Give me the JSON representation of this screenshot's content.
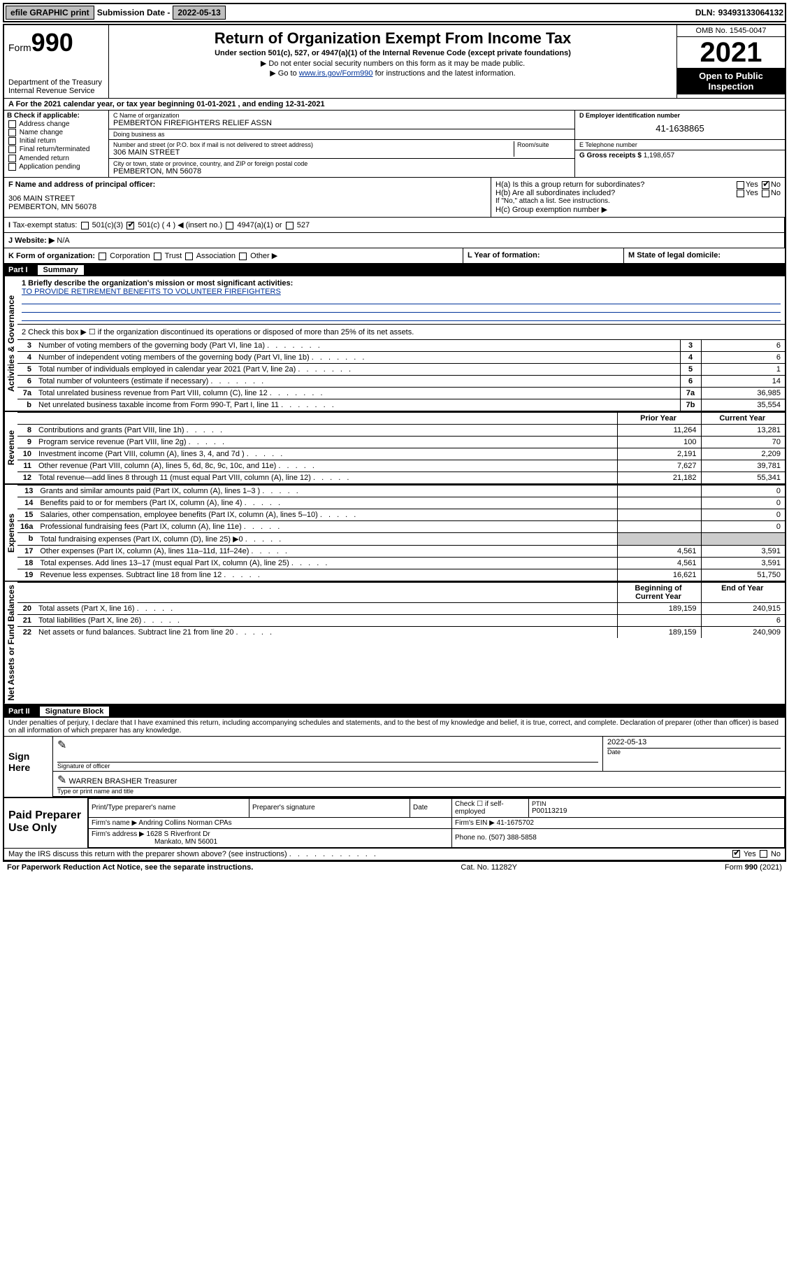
{
  "top": {
    "efile": "efile GRAPHIC print",
    "submission_label": "Submission Date - ",
    "submission_date": "2022-05-13",
    "dln_label": "DLN: ",
    "dln": "93493133064132"
  },
  "header": {
    "form_word": "Form",
    "form_num": "990",
    "dept": "Department of the Treasury",
    "irs": "Internal Revenue Service",
    "title": "Return of Organization Exempt From Income Tax",
    "sub": "Under section 501(c), 527, or 4947(a)(1) of the Internal Revenue Code (except private foundations)",
    "note1": "▶ Do not enter social security numbers on this form as it may be made public.",
    "note2_pre": "▶ Go to ",
    "note2_link": "www.irs.gov/Form990",
    "note2_post": " for instructions and the latest information.",
    "omb": "OMB No. 1545-0047",
    "year": "2021",
    "open": "Open to Public Inspection"
  },
  "period": {
    "label": "A For the 2021 calendar year, or tax year beginning ",
    "begin": "01-01-2021",
    "mid": " , and ending ",
    "end": "12-31-2021"
  },
  "boxB": {
    "title": "B Check if applicable:",
    "opts": [
      "Address change",
      "Name change",
      "Initial return",
      "Final return/terminated",
      "Amended return",
      "Application pending"
    ]
  },
  "boxC": {
    "name_lbl": "C Name of organization",
    "name": "PEMBERTON FIREFIGHTERS RELIEF ASSN",
    "dba_lbl": "Doing business as",
    "dba": "",
    "addr_lbl": "Number and street (or P.O. box if mail is not delivered to street address)",
    "room_lbl": "Room/suite",
    "addr": "306 MAIN STREET",
    "city_lbl": "City or town, state or province, country, and ZIP or foreign postal code",
    "city": "PEMBERTON, MN  56078"
  },
  "boxD": {
    "lbl": "D Employer identification number",
    "val": "41-1638865"
  },
  "boxE": {
    "lbl": "E Telephone number",
    "val": ""
  },
  "boxG": {
    "lbl": "G Gross receipts $ ",
    "val": "1,198,657"
  },
  "boxF": {
    "lbl": "F Name and address of principal officer:",
    "line1": "306 MAIN STREET",
    "line2": "PEMBERTON, MN  56078"
  },
  "boxH": {
    "a": "H(a)  Is this a group return for subordinates?",
    "b": "H(b)  Are all subordinates included?",
    "b_note": "If \"No,\" attach a list. See instructions.",
    "c": "H(c)  Group exemption number ▶",
    "yes": "Yes",
    "no": "No"
  },
  "boxI": {
    "lbl": "Tax-exempt status:",
    "opts": [
      "501(c)(3)",
      "501(c) ( 4 ) ◀ (insert no.)",
      "4947(a)(1) or",
      "527"
    ]
  },
  "boxJ": {
    "lbl": "J Website: ▶",
    "val": "N/A"
  },
  "boxK": {
    "lbl": "K Form of organization:",
    "opts": [
      "Corporation",
      "Trust",
      "Association",
      "Other ▶"
    ]
  },
  "boxL": {
    "lbl": "L Year of formation:",
    "val": ""
  },
  "boxM": {
    "lbl": "M State of legal domicile:",
    "val": ""
  },
  "part1": {
    "num": "Part I",
    "title": "Summary"
  },
  "mission": {
    "lbl": "1  Briefly describe the organization's mission or most significant activities:",
    "text": "TO PROVIDE RETIREMENT BENEFITS TO VOLUNTEER FIREFIGHTERS"
  },
  "line2": "2   Check this box ▶ ☐  if the organization discontinued its operations or disposed of more than 25% of its net assets.",
  "gov_lines": [
    {
      "n": "3",
      "t": "Number of voting members of the governing body (Part VI, line 1a)",
      "id": "3",
      "v": "6"
    },
    {
      "n": "4",
      "t": "Number of independent voting members of the governing body (Part VI, line 1b)",
      "id": "4",
      "v": "6"
    },
    {
      "n": "5",
      "t": "Total number of individuals employed in calendar year 2021 (Part V, line 2a)",
      "id": "5",
      "v": "1"
    },
    {
      "n": "6",
      "t": "Total number of volunteers (estimate if necessary)",
      "id": "6",
      "v": "14"
    },
    {
      "n": "7a",
      "t": "Total unrelated business revenue from Part VIII, column (C), line 12",
      "id": "7a",
      "v": "36,985"
    },
    {
      "n": "b",
      "t": "Net unrelated business taxable income from Form 990-T, Part I, line 11",
      "id": "7b",
      "v": "35,554"
    }
  ],
  "rev_head": {
    "prior": "Prior Year",
    "cur": "Current Year"
  },
  "rev_lines": [
    {
      "n": "8",
      "t": "Contributions and grants (Part VIII, line 1h)",
      "p": "11,264",
      "c": "13,281"
    },
    {
      "n": "9",
      "t": "Program service revenue (Part VIII, line 2g)",
      "p": "100",
      "c": "70"
    },
    {
      "n": "10",
      "t": "Investment income (Part VIII, column (A), lines 3, 4, and 7d )",
      "p": "2,191",
      "c": "2,209"
    },
    {
      "n": "11",
      "t": "Other revenue (Part VIII, column (A), lines 5, 6d, 8c, 9c, 10c, and 11e)",
      "p": "7,627",
      "c": "39,781"
    },
    {
      "n": "12",
      "t": "Total revenue—add lines 8 through 11 (must equal Part VIII, column (A), line 12)",
      "p": "21,182",
      "c": "55,341"
    }
  ],
  "exp_lines": [
    {
      "n": "13",
      "t": "Grants and similar amounts paid (Part IX, column (A), lines 1–3 )",
      "p": "",
      "c": "0"
    },
    {
      "n": "14",
      "t": "Benefits paid to or for members (Part IX, column (A), line 4)",
      "p": "",
      "c": "0"
    },
    {
      "n": "15",
      "t": "Salaries, other compensation, employee benefits (Part IX, column (A), lines 5–10)",
      "p": "",
      "c": "0"
    },
    {
      "n": "16a",
      "t": "Professional fundraising fees (Part IX, column (A), line 11e)",
      "p": "",
      "c": "0"
    },
    {
      "n": "b",
      "t": "Total fundraising expenses (Part IX, column (D), line 25) ▶0",
      "p": "SHADE",
      "c": "SHADE"
    },
    {
      "n": "17",
      "t": "Other expenses (Part IX, column (A), lines 11a–11d, 11f–24e)",
      "p": "4,561",
      "c": "3,591"
    },
    {
      "n": "18",
      "t": "Total expenses. Add lines 13–17 (must equal Part IX, column (A), line 25)",
      "p": "4,561",
      "c": "3,591"
    },
    {
      "n": "19",
      "t": "Revenue less expenses. Subtract line 18 from line 12",
      "p": "16,621",
      "c": "51,750"
    }
  ],
  "na_head": {
    "beg": "Beginning of Current Year",
    "end": "End of Year"
  },
  "na_lines": [
    {
      "n": "20",
      "t": "Total assets (Part X, line 16)",
      "p": "189,159",
      "c": "240,915"
    },
    {
      "n": "21",
      "t": "Total liabilities (Part X, line 26)",
      "p": "",
      "c": "6"
    },
    {
      "n": "22",
      "t": "Net assets or fund balances. Subtract line 21 from line 20",
      "p": "189,159",
      "c": "240,909"
    }
  ],
  "part2": {
    "num": "Part II",
    "title": "Signature Block"
  },
  "jurat": "Under penalties of perjury, I declare that I have examined this return, including accompanying schedules and statements, and to the best of my knowledge and belief, it is true, correct, and complete. Declaration of preparer (other than officer) is based on all information of which preparer has any knowledge.",
  "sign": {
    "here": "Sign Here",
    "sig_lbl": "Signature of officer",
    "date_lbl": "Date",
    "date": "2022-05-13",
    "name": "WARREN BRASHER Treasurer",
    "name_lbl": "Type or print name and title"
  },
  "prep": {
    "lbl": "Paid Preparer Use Only",
    "h1": "Print/Type preparer's name",
    "h2": "Preparer's signature",
    "h3": "Date",
    "h4_pre": "Check ☐ if self-employed",
    "h5": "PTIN",
    "ptin": "P00113219",
    "firm_lbl": "Firm's name   ▶",
    "firm": "Andring Collins Norman CPAs",
    "ein_lbl": "Firm's EIN ▶",
    "ein": "41-1675702",
    "addr_lbl": "Firm's address ▶",
    "addr1": "1628 S Riverfront Dr",
    "addr2": "Mankato, MN  56001",
    "phone_lbl": "Phone no.",
    "phone": "(507) 388-5858"
  },
  "discuss": {
    "q": "May the IRS discuss this return with the preparer shown above? (see instructions)",
    "yes": "Yes",
    "no": "No"
  },
  "footer": {
    "left": "For Paperwork Reduction Act Notice, see the separate instructions.",
    "mid": "Cat. No. 11282Y",
    "right": "Form 990 (2021)"
  },
  "side_labels": {
    "gov": "Activities & Governance",
    "rev": "Revenue",
    "exp": "Expenses",
    "na": "Net Assets or Fund Balances"
  }
}
